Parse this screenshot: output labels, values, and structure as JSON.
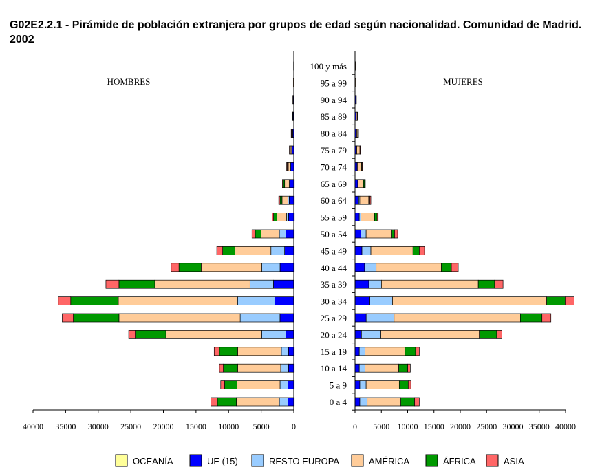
{
  "title": "G02E2.2.1 - Pirámide de población extranjera por grupos de edad según nacionalidad. Comunidad de Madrid. 2002",
  "chart_data": {
    "type": "bar",
    "orientation": "horizontal",
    "stacked": true,
    "panels": [
      {
        "key": "hombres",
        "label": "HOMBRES",
        "xlim": [
          0,
          40000
        ],
        "ticks": [
          "40000",
          "35000",
          "30000",
          "25000",
          "20000",
          "15000",
          "10000",
          "5000",
          "0"
        ]
      },
      {
        "key": "mujeres",
        "label": "MUJERES",
        "xlim": [
          0,
          40000
        ],
        "ticks": [
          "0",
          "5000",
          "10000",
          "15000",
          "20000",
          "25000",
          "30000",
          "35000",
          "40000"
        ]
      }
    ],
    "categories": [
      "0 a 4",
      "5 a 9",
      "10 a 14",
      "15 a 19",
      "20 a 24",
      "25 a 29",
      "30 a 34",
      "35 a 39",
      "40 a 44",
      "45 a 49",
      "50 a 54",
      "55 a 59",
      "60 a 64",
      "65 a 69",
      "70 a 74",
      "75 a 79",
      "80 a 84",
      "85 a 89",
      "90 a 94",
      "95 a 99",
      "100 y más"
    ],
    "series": [
      {
        "name": "OCEANÍA",
        "color": "#ffff99",
        "hombres": [
          10,
          10,
          10,
          10,
          20,
          20,
          20,
          20,
          10,
          10,
          10,
          5,
          5,
          5,
          0,
          0,
          0,
          0,
          0,
          0,
          0
        ],
        "mujeres": [
          10,
          10,
          10,
          10,
          20,
          20,
          20,
          20,
          10,
          10,
          10,
          5,
          5,
          5,
          0,
          0,
          0,
          0,
          0,
          0,
          0
        ]
      },
      {
        "name": "UE (15)",
        "color": "#0000ff",
        "hombres": [
          900,
          900,
          800,
          800,
          1200,
          2100,
          2900,
          3100,
          2100,
          1400,
          1200,
          800,
          700,
          600,
          500,
          300,
          200,
          150,
          100,
          50,
          20
        ],
        "mujeres": [
          900,
          900,
          800,
          800,
          1200,
          2100,
          2800,
          2600,
          1800,
          1300,
          1100,
          800,
          700,
          500,
          400,
          300,
          300,
          200,
          150,
          50,
          20
        ],
        "color_note": ""
      },
      {
        "name": "RESTO EUROPA",
        "color": "#99ccff",
        "hombres": [
          1300,
          1200,
          1200,
          1100,
          3700,
          6100,
          5700,
          3600,
          2800,
          2100,
          1000,
          300,
          200,
          100,
          50,
          30,
          20,
          10,
          0,
          0,
          0
        ],
        "mujeres": [
          1400,
          1200,
          1100,
          1100,
          3700,
          5300,
          4300,
          2400,
          2200,
          1700,
          1000,
          300,
          200,
          100,
          50,
          30,
          20,
          10,
          0,
          0,
          0
        ]
      },
      {
        "name": "AMÉRICA",
        "color": "#ffcc99",
        "hombres": [
          6600,
          6600,
          6600,
          6700,
          14700,
          18600,
          18300,
          14600,
          9300,
          5500,
          2800,
          1500,
          900,
          700,
          300,
          200,
          100,
          100,
          50,
          20,
          10
        ],
        "mujeres": [
          6400,
          6300,
          6400,
          7600,
          18700,
          24000,
          29300,
          18400,
          12400,
          8000,
          4900,
          2600,
          1700,
          1000,
          800,
          600,
          200,
          200,
          100,
          50,
          20
        ]
      },
      {
        "name": "ÁFRICA",
        "color": "#009900",
        "hombres": [
          2900,
          1900,
          2200,
          2800,
          4700,
          7000,
          7300,
          5500,
          3400,
          1900,
          900,
          500,
          300,
          200,
          150,
          100,
          50,
          0,
          0,
          0,
          0
        ],
        "mujeres": [
          2600,
          1700,
          1700,
          2000,
          3300,
          4100,
          3500,
          3100,
          1900,
          1200,
          500,
          500,
          200,
          200,
          100,
          50,
          30,
          0,
          0,
          0,
          0
        ]
      },
      {
        "name": "ASIA",
        "color": "#ff6666",
        "hombres": [
          1000,
          600,
          600,
          800,
          1000,
          1700,
          1900,
          2000,
          1200,
          900,
          500,
          200,
          200,
          150,
          100,
          50,
          30,
          20,
          0,
          0,
          0
        ],
        "mujeres": [
          900,
          500,
          500,
          700,
          1000,
          1700,
          1700,
          1600,
          1300,
          1000,
          600,
          200,
          200,
          150,
          100,
          50,
          30,
          20,
          0,
          0,
          0
        ]
      }
    ],
    "legend_position": "bottom",
    "grid": false
  }
}
